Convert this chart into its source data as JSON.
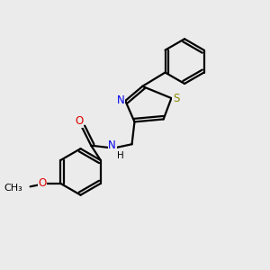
{
  "bg_color": "#ebebeb",
  "bond_color": "#000000",
  "atom_colors": {
    "N": "#0000ee",
    "O": "#dd0000",
    "S": "#888800",
    "C": "#000000",
    "H": "#000000"
  },
  "line_width": 1.6,
  "font_size": 8.5,
  "figsize": [
    3.0,
    3.0
  ],
  "dpi": 100
}
